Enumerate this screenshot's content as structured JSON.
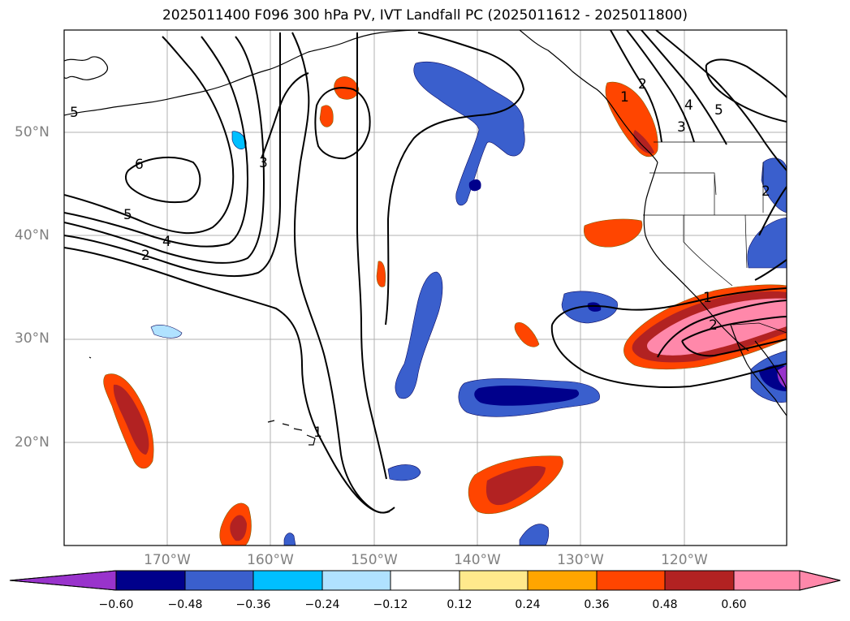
{
  "title": "2025011400 F096 300 hPa PV, IVT Landfall PC (2025011612 - 2025011800)",
  "lat_labels": [
    "50°N",
    "40°N",
    "30°N",
    "20°N"
  ],
  "lon_labels": [
    "170°W",
    "160°W",
    "150°W",
    "140°W",
    "130°W",
    "120°W"
  ],
  "colorbar": {
    "ticks": [
      "−0.60",
      "−0.48",
      "−0.36",
      "−0.24",
      "−0.12",
      "0.12",
      "0.24",
      "0.36",
      "0.48",
      "0.60"
    ],
    "colors": [
      "#9933cc",
      "#00008b",
      "#3a5fcd",
      "#00bfff",
      "#b0e2ff",
      "#ffffff",
      "#ffe98c",
      "#ffa500",
      "#ff4500",
      "#b22222",
      "#ff88aa"
    ]
  },
  "contour_labels": [
    "6",
    "5",
    "4",
    "2",
    "3",
    "1",
    "1",
    "2",
    "2",
    "3",
    "4",
    "5",
    "1",
    "2",
    "5"
  ]
}
